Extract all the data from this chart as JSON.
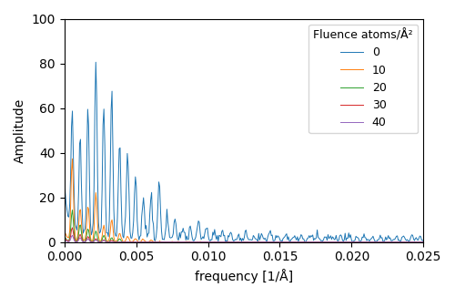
{
  "xlabel": "frequency [1/Å]",
  "ylabel": "Amplitude",
  "xlim": [
    0.0,
    0.025
  ],
  "ylim": [
    0,
    100
  ],
  "xticks": [
    0.0,
    0.005,
    0.01,
    0.015,
    0.02,
    0.025
  ],
  "yticks": [
    0,
    20,
    40,
    60,
    80,
    100
  ],
  "legend_title": "Fluence atoms/Å²",
  "legend_labels": [
    "0",
    "10",
    "20",
    "30",
    "40"
  ],
  "line_colors": [
    "#1f77b4",
    "#ff7f0e",
    "#2ca02c",
    "#d62728",
    "#9467bd"
  ],
  "figsize": [
    5.0,
    3.26
  ],
  "dpi": 100,
  "seed": 12345
}
